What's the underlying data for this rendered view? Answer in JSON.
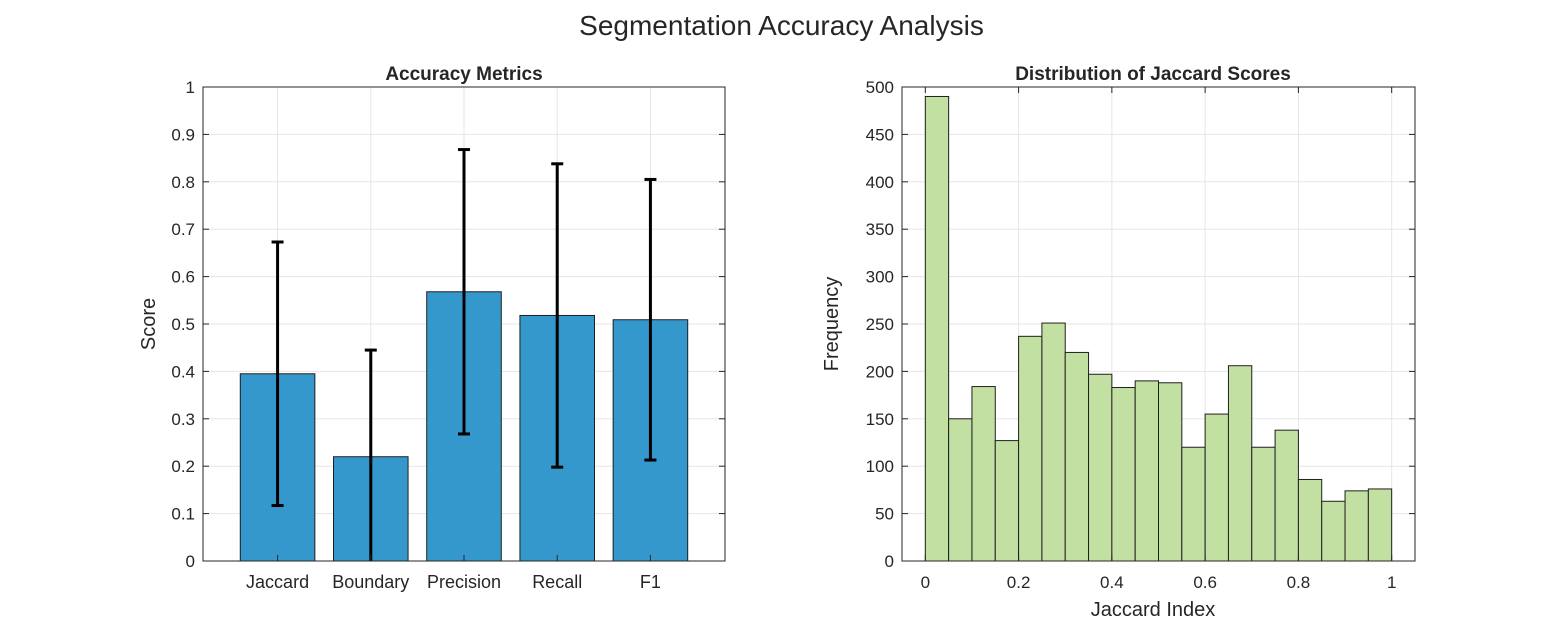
{
  "figure": {
    "suptitle": "Segmentation Accuracy Analysis"
  },
  "chart_data": [
    {
      "type": "bar",
      "title": "Accuracy Metrics",
      "xlabel": "",
      "ylabel": "Score",
      "categories": [
        "Jaccard",
        "Boundary",
        "Precision",
        "Recall",
        "F1"
      ],
      "values": [
        0.395,
        0.22,
        0.568,
        0.518,
        0.509
      ],
      "error": [
        0.278,
        0.225,
        0.3,
        0.32,
        0.296
      ],
      "ylim": [
        0,
        1
      ],
      "yticks": [
        0,
        0.1,
        0.2,
        0.3,
        0.4,
        0.5,
        0.6,
        0.7,
        0.8,
        0.9,
        1
      ],
      "ytick_labels": [
        "0",
        "0.1",
        "0.2",
        "0.3",
        "0.4",
        "0.5",
        "0.6",
        "0.7",
        "0.8",
        "0.9",
        "1"
      ],
      "grid": true,
      "color": "#3498cc"
    },
    {
      "type": "bar",
      "subtype": "histogram",
      "title": "Distribution of Jaccard Scores",
      "xlabel": "Jaccard Index",
      "ylabel": "Frequency",
      "bin_edges": [
        0,
        0.05,
        0.1,
        0.15,
        0.2,
        0.25,
        0.3,
        0.35,
        0.4,
        0.45,
        0.5,
        0.55,
        0.6,
        0.65,
        0.7,
        0.75,
        0.8,
        0.85,
        0.9,
        0.95,
        1.0
      ],
      "values": [
        490,
        150,
        184,
        127,
        237,
        251,
        220,
        197,
        183,
        190,
        188,
        120,
        155,
        206,
        120,
        138,
        86,
        63,
        74,
        76
      ],
      "xlim": [
        -0.05,
        1.05
      ],
      "xticks": [
        0,
        0.2,
        0.4,
        0.6,
        0.8,
        1
      ],
      "xtick_labels": [
        "0",
        "0.2",
        "0.4",
        "0.6",
        "0.8",
        "1"
      ],
      "ylim": [
        0,
        500
      ],
      "yticks": [
        0,
        50,
        100,
        150,
        200,
        250,
        300,
        350,
        400,
        450,
        500
      ],
      "ytick_labels": [
        "0",
        "50",
        "100",
        "150",
        "200",
        "250",
        "300",
        "350",
        "400",
        "450",
        "500"
      ],
      "grid": true,
      "color": "#c3e0a3"
    }
  ]
}
